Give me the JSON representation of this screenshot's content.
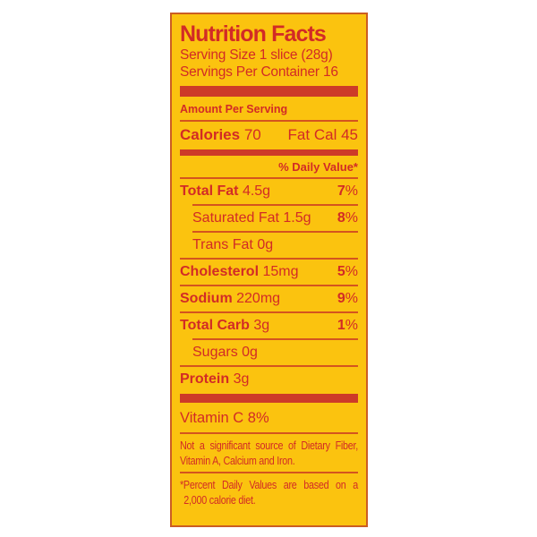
{
  "label": {
    "title": "Nutrition Facts",
    "serving_size": "Serving Size 1 slice (28g)",
    "servings_per_container": "Servings Per Container 16",
    "amount_per_serving": "Amount Per Serving",
    "calories_label": "Calories",
    "calories_value": "70",
    "fat_cal_label": "Fat Cal",
    "fat_cal_value": "45",
    "daily_value_header": "% Daily Value*",
    "rows": [
      {
        "name": "Total Fat",
        "amount": "4.5g",
        "dv_value": "7",
        "dv_unit": "%"
      },
      {
        "name": "Saturated Fat",
        "amount": "1.5g",
        "dv_value": "8",
        "dv_unit": "%"
      },
      {
        "name": "Trans Fat",
        "amount": "0g",
        "dv_value": "",
        "dv_unit": ""
      },
      {
        "name": "Cholesterol",
        "amount": "15mg",
        "dv_value": "5",
        "dv_unit": "%"
      },
      {
        "name": "Sodium",
        "amount": "220mg",
        "dv_value": "9",
        "dv_unit": "%"
      },
      {
        "name": "Total Carb",
        "amount": "3g",
        "dv_value": "1",
        "dv_unit": "%"
      },
      {
        "name": "Sugars",
        "amount": "0g",
        "dv_value": "",
        "dv_unit": ""
      },
      {
        "name": "Protein",
        "amount": "3g",
        "dv_value": "",
        "dv_unit": ""
      }
    ],
    "vitamin_row": "Vitamin C 8%",
    "disclaimer_lines": [
      "Not a significant source of Dietary Fiber,",
      "Vitamin A, Calcium and Iron."
    ],
    "footnote_lines": [
      "*Percent Daily Values are based on a",
      "2,000 calorie diet."
    ],
    "colors": {
      "page_background": "#FFFFFF",
      "label_background": "#FBC30F",
      "text_red": "#D22B26",
      "bar_red": "#CD3A28",
      "hairline_red": "#D4541E",
      "border_orange": "#CB5D22"
    }
  }
}
